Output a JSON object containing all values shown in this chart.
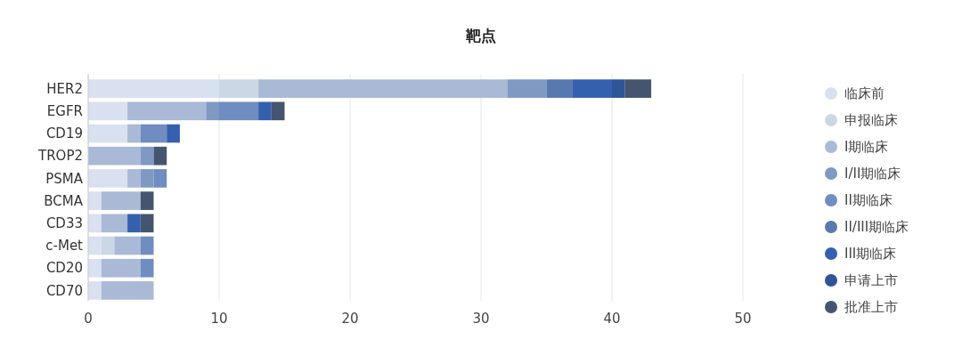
{
  "chart_data": {
    "type": "bar",
    "title": "靶点",
    "orientation": "horizontal",
    "stacked": true,
    "categories": [
      "HER2",
      "EGFR",
      "CD19",
      "TROP2",
      "PSMA",
      "BCMA",
      "CD33",
      "c-Met",
      "CD20",
      "CD70"
    ],
    "series": [
      {
        "name": "临床前",
        "color": "#d9e1f0",
        "values": [
          10,
          3,
          3,
          0,
          3,
          1,
          1,
          1,
          1,
          1
        ]
      },
      {
        "name": "申报临床",
        "color": "#ccd7e6",
        "values": [
          3,
          0,
          0,
          0,
          0,
          0,
          0,
          1,
          0,
          0
        ]
      },
      {
        "name": "I期临床",
        "color": "#a9b9d6",
        "values": [
          19,
          6,
          1,
          4,
          1,
          3,
          2,
          2,
          3,
          4
        ]
      },
      {
        "name": "I/II期临床",
        "color": "#8099c3",
        "values": [
          3,
          1,
          0,
          1,
          1,
          0,
          0,
          0,
          0,
          0
        ]
      },
      {
        "name": "II期临床",
        "color": "#6f8dc0",
        "values": [
          0,
          3,
          2,
          0,
          1,
          0,
          0,
          1,
          1,
          0
        ]
      },
      {
        "name": "II/III期临床",
        "color": "#5878b0",
        "values": [
          2,
          0,
          0,
          0,
          0,
          0,
          0,
          0,
          0,
          0
        ]
      },
      {
        "name": "III期临床",
        "color": "#3560ae",
        "values": [
          3,
          1,
          1,
          0,
          0,
          0,
          1,
          0,
          0,
          0
        ]
      },
      {
        "name": "申请上市",
        "color": "#2e5596",
        "values": [
          1,
          0,
          0,
          0,
          0,
          0,
          0,
          0,
          0,
          0
        ]
      },
      {
        "name": "批准上市",
        "color": "#455570",
        "values": [
          2,
          1,
          0,
          1,
          0,
          1,
          1,
          0,
          0,
          0
        ]
      }
    ],
    "xlim": [
      0,
      50
    ],
    "xticks": [
      0,
      10,
      20,
      30,
      40,
      50
    ],
    "grid": "x",
    "legend": "right"
  }
}
